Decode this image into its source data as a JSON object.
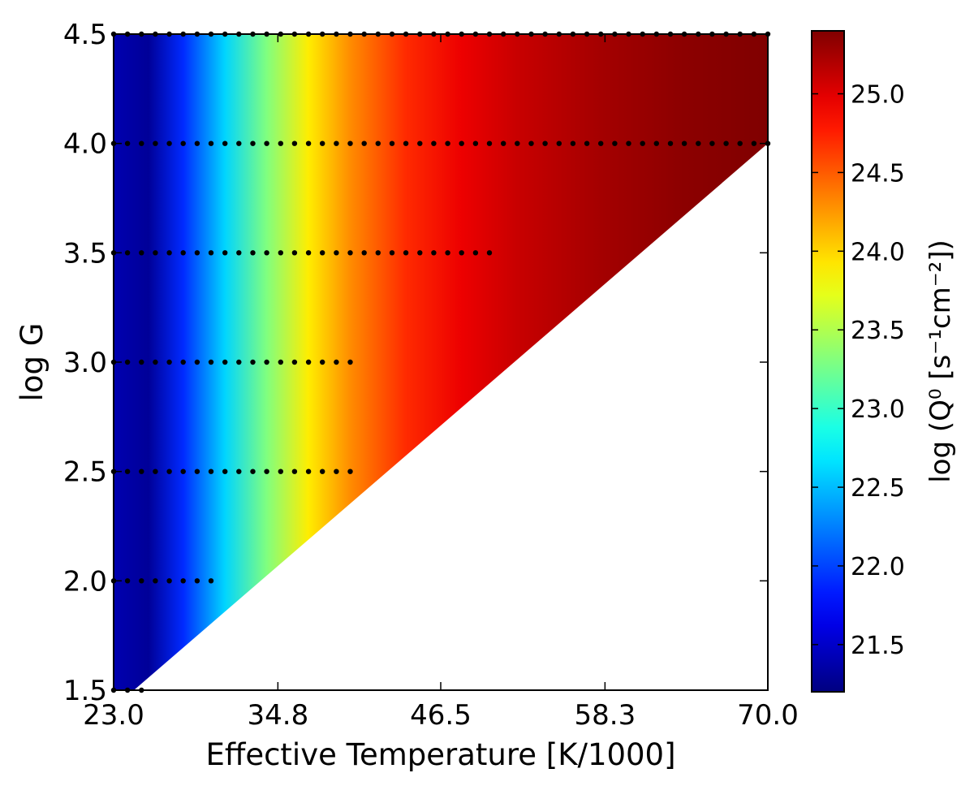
{
  "chart_data": {
    "type": "heatmap",
    "title": "",
    "xlabel": "Effective Temperature [K/1000]",
    "ylabel": "log G",
    "xlim": [
      23.0,
      70.0
    ],
    "ylim": [
      1.5,
      4.5
    ],
    "x_ticks": [
      "23.0",
      "34.8",
      "46.5",
      "58.3",
      "70.0"
    ],
    "x_tick_values": [
      23.0,
      34.8,
      46.5,
      58.3,
      70.0
    ],
    "y_ticks": [
      "1.5",
      "2.0",
      "2.5",
      "3.0",
      "3.5",
      "4.0",
      "4.5"
    ],
    "y_tick_values": [
      1.5,
      2.0,
      2.5,
      3.0,
      3.5,
      4.0,
      4.5
    ],
    "colorbar": {
      "label": "log (Q⁰ [s⁻¹cm⁻²])",
      "ticks": [
        "21.5",
        "22.0",
        "22.5",
        "23.0",
        "23.5",
        "24.0",
        "24.5",
        "25.0"
      ],
      "tick_values": [
        21.5,
        22.0,
        22.5,
        23.0,
        23.5,
        24.0,
        24.5,
        25.0
      ],
      "range": [
        21.2,
        25.4
      ],
      "colormap": "jet"
    },
    "field": {
      "description_of_value_by_teff": [
        {
          "teff": 23.0,
          "value": 21.4
        },
        {
          "teff": 25.5,
          "value": 21.3
        },
        {
          "teff": 28.0,
          "value": 21.9
        },
        {
          "teff": 31.0,
          "value": 22.6
        },
        {
          "teff": 34.0,
          "value": 23.3
        },
        {
          "teff": 37.0,
          "value": 23.9
        },
        {
          "teff": 40.0,
          "value": 24.3
        },
        {
          "teff": 44.0,
          "value": 24.7
        },
        {
          "teff": 48.0,
          "value": 24.95
        },
        {
          "teff": 52.0,
          "value": 25.1
        },
        {
          "teff": 58.0,
          "value": 25.25
        },
        {
          "teff": 64.0,
          "value": 25.35
        },
        {
          "teff": 70.0,
          "value": 25.4
        }
      ],
      "boundary": [
        {
          "teff": 23.0,
          "logg": 1.45
        },
        {
          "teff": 70.0,
          "logg": 4.0
        }
      ]
    },
    "grid_points": [
      {
        "logg": 4.5,
        "teff_min": 23.0,
        "teff_max": 70.0
      },
      {
        "logg": 4.0,
        "teff_min": 23.0,
        "teff_max": 70.0
      },
      {
        "logg": 3.5,
        "teff_min": 23.0,
        "teff_max": 50.0
      },
      {
        "logg": 3.0,
        "teff_min": 23.0,
        "teff_max": 40.0
      },
      {
        "logg": 2.5,
        "teff_min": 23.0,
        "teff_max": 40.0
      },
      {
        "logg": 2.0,
        "teff_min": 23.0,
        "teff_max": 30.0
      },
      {
        "logg": 1.5,
        "teff_min": 23.0,
        "teff_max": 25.0
      }
    ],
    "grid_step_teff": 1.0
  }
}
